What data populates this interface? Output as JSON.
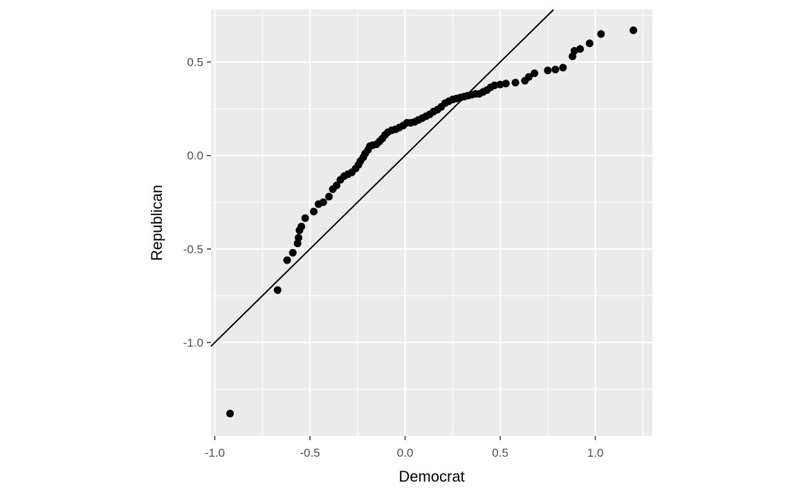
{
  "chart_data": {
    "type": "scatter",
    "xlabel": "Democrat",
    "ylabel": "Republican",
    "xlim": [
      -1.02,
      1.3
    ],
    "ylim": [
      -1.5,
      0.78
    ],
    "x_ticks": [
      -1.0,
      -0.5,
      0.0,
      0.5,
      1.0
    ],
    "x_tick_labels": [
      "-1.0",
      "-0.5",
      "0.0",
      "0.5",
      "1.0"
    ],
    "y_ticks": [
      -1.0,
      -0.5,
      0.0,
      0.5
    ],
    "y_tick_labels": [
      "-1.0",
      "-0.5",
      "0.0",
      "0.5"
    ],
    "grid": true,
    "reference_line": {
      "slope": 1,
      "intercept": 0
    },
    "points": [
      {
        "x": -0.92,
        "y": -1.38
      },
      {
        "x": -0.67,
        "y": -0.72
      },
      {
        "x": -0.62,
        "y": -0.56
      },
      {
        "x": -0.59,
        "y": -0.52
      },
      {
        "x": -0.565,
        "y": -0.47
      },
      {
        "x": -0.56,
        "y": -0.44
      },
      {
        "x": -0.555,
        "y": -0.4
      },
      {
        "x": -0.545,
        "y": -0.38
      },
      {
        "x": -0.525,
        "y": -0.335
      },
      {
        "x": -0.48,
        "y": -0.3
      },
      {
        "x": -0.455,
        "y": -0.26
      },
      {
        "x": -0.43,
        "y": -0.25
      },
      {
        "x": -0.4,
        "y": -0.22
      },
      {
        "x": -0.38,
        "y": -0.18
      },
      {
        "x": -0.36,
        "y": -0.16
      },
      {
        "x": -0.34,
        "y": -0.13
      },
      {
        "x": -0.32,
        "y": -0.11
      },
      {
        "x": -0.3,
        "y": -0.1
      },
      {
        "x": -0.28,
        "y": -0.09
      },
      {
        "x": -0.26,
        "y": -0.07
      },
      {
        "x": -0.245,
        "y": -0.05
      },
      {
        "x": -0.235,
        "y": -0.03
      },
      {
        "x": -0.22,
        "y": -0.01
      },
      {
        "x": -0.21,
        "y": 0.01
      },
      {
        "x": -0.195,
        "y": 0.03
      },
      {
        "x": -0.185,
        "y": 0.05
      },
      {
        "x": -0.17,
        "y": 0.055
      },
      {
        "x": -0.15,
        "y": 0.06
      },
      {
        "x": -0.135,
        "y": 0.075
      },
      {
        "x": -0.12,
        "y": 0.09
      },
      {
        "x": -0.105,
        "y": 0.11
      },
      {
        "x": -0.09,
        "y": 0.125
      },
      {
        "x": -0.07,
        "y": 0.135
      },
      {
        "x": -0.05,
        "y": 0.14
      },
      {
        "x": -0.03,
        "y": 0.15
      },
      {
        "x": -0.01,
        "y": 0.16
      },
      {
        "x": 0.01,
        "y": 0.175
      },
      {
        "x": 0.03,
        "y": 0.175
      },
      {
        "x": 0.05,
        "y": 0.18
      },
      {
        "x": 0.07,
        "y": 0.19
      },
      {
        "x": 0.09,
        "y": 0.2
      },
      {
        "x": 0.11,
        "y": 0.21
      },
      {
        "x": 0.13,
        "y": 0.22
      },
      {
        "x": 0.15,
        "y": 0.235
      },
      {
        "x": 0.17,
        "y": 0.245
      },
      {
        "x": 0.19,
        "y": 0.26
      },
      {
        "x": 0.21,
        "y": 0.28
      },
      {
        "x": 0.23,
        "y": 0.29
      },
      {
        "x": 0.25,
        "y": 0.3
      },
      {
        "x": 0.27,
        "y": 0.305
      },
      {
        "x": 0.29,
        "y": 0.31
      },
      {
        "x": 0.31,
        "y": 0.315
      },
      {
        "x": 0.33,
        "y": 0.32
      },
      {
        "x": 0.35,
        "y": 0.325
      },
      {
        "x": 0.37,
        "y": 0.33
      },
      {
        "x": 0.39,
        "y": 0.33
      },
      {
        "x": 0.41,
        "y": 0.34
      },
      {
        "x": 0.43,
        "y": 0.35
      },
      {
        "x": 0.45,
        "y": 0.365
      },
      {
        "x": 0.47,
        "y": 0.375
      },
      {
        "x": 0.5,
        "y": 0.38
      },
      {
        "x": 0.53,
        "y": 0.385
      },
      {
        "x": 0.58,
        "y": 0.39
      },
      {
        "x": 0.63,
        "y": 0.4
      },
      {
        "x": 0.65,
        "y": 0.42
      },
      {
        "x": 0.68,
        "y": 0.44
      },
      {
        "x": 0.75,
        "y": 0.455
      },
      {
        "x": 0.79,
        "y": 0.46
      },
      {
        "x": 0.83,
        "y": 0.47
      },
      {
        "x": 0.88,
        "y": 0.53
      },
      {
        "x": 0.89,
        "y": 0.56
      },
      {
        "x": 0.92,
        "y": 0.57
      },
      {
        "x": 0.97,
        "y": 0.6
      },
      {
        "x": 1.03,
        "y": 0.65
      },
      {
        "x": 1.2,
        "y": 0.67
      }
    ]
  }
}
